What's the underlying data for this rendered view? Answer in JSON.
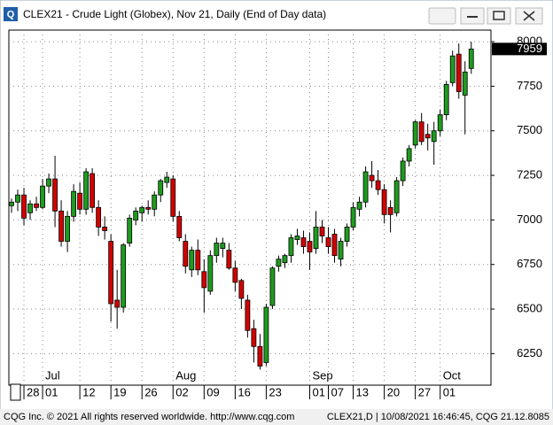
{
  "chart_data": {
    "type": "candlestick",
    "title": "CLEX21 - Crude Light (Globex), Nov 21, Daily (End of Day data)",
    "footer_left": "CQG Inc. © 2021 All rights reserved worldwide. http://www.cqg.com",
    "footer_right": "CLEX21,D | 10/08/2021 16:46:45, CQG 21.12.8085",
    "categories": [
      null,
      null,
      "28",
      null,
      null,
      "01",
      null,
      null,
      null,
      null,
      null,
      "12",
      null,
      null,
      null,
      null,
      "19",
      null,
      null,
      null,
      null,
      "26",
      null,
      null,
      null,
      null,
      "02",
      null,
      null,
      null,
      null,
      "09",
      null,
      null,
      null,
      null,
      "16",
      null,
      null,
      null,
      null,
      "23",
      null,
      null,
      null,
      null,
      null,
      null,
      "01",
      null,
      null,
      "07",
      null,
      null,
      null,
      "13",
      null,
      null,
      null,
      null,
      "20",
      null,
      null,
      null,
      null,
      "27",
      null,
      null,
      null,
      "01",
      null,
      null,
      null,
      null,
      null
    ],
    "months": [
      "Jul",
      "Aug",
      "Sep",
      "Oct"
    ],
    "open": [
      7080,
      7100,
      7140,
      7040,
      7090,
      7070,
      7190,
      7230,
      7050,
      6880,
      7020,
      7150,
      7060,
      7260,
      7070,
      6960,
      6880,
      6550,
      6510,
      6870,
      7000,
      7040,
      7070,
      7060,
      7140,
      7210,
      7230,
      7020,
      6880,
      6720,
      6830,
      6710,
      6600,
      6800,
      6840,
      6830,
      6730,
      6660,
      6550,
      6390,
      6290,
      6200,
      6520,
      6740,
      6760,
      6800,
      6890,
      6900,
      6880,
      6840,
      6960,
      6900,
      6920,
      6780,
      6880,
      6960,
      7060,
      7100,
      7250,
      7220,
      7170,
      7070,
      7040,
      7220,
      7330,
      7420,
      7550,
      7480,
      7440,
      7500,
      7590,
      7770,
      7930,
      7700,
      7850
    ],
    "high": [
      7120,
      7170,
      7180,
      7110,
      7130,
      7230,
      7260,
      7360,
      7110,
      7050,
      7200,
      7210,
      7290,
      7290,
      7110,
      7020,
      6920,
      6720,
      6870,
      7030,
      7070,
      7080,
      7110,
      7160,
      7230,
      7270,
      7250,
      7050,
      6920,
      6850,
      6890,
      6780,
      6830,
      6900,
      6900,
      6870,
      6770,
      6670,
      6580,
      6440,
      6360,
      6530,
      6740,
      6800,
      6810,
      6920,
      6950,
      6940,
      6930,
      7050,
      7000,
      6960,
      6950,
      6900,
      6980,
      7100,
      7130,
      7300,
      7330,
      7280,
      7200,
      7110,
      7240,
      7350,
      7420,
      7560,
      7600,
      7540,
      7550,
      7620,
      7780,
      7950,
      7990,
      7890,
      8000
    ],
    "low": [
      7040,
      7050,
      6970,
      7000,
      7050,
      7060,
      7150,
      6960,
      6850,
      6820,
      6990,
      7030,
      7030,
      7040,
      6910,
      6890,
      6430,
      6390,
      6480,
      6850,
      6970,
      6990,
      7030,
      7020,
      7100,
      7180,
      6990,
      6880,
      6700,
      6680,
      6690,
      6480,
      6580,
      6760,
      6790,
      6720,
      6600,
      6500,
      6340,
      6200,
      6160,
      6180,
      6500,
      6710,
      6730,
      6760,
      6860,
      6810,
      6720,
      6810,
      6870,
      6810,
      6760,
      6740,
      6850,
      6940,
      7020,
      7070,
      7180,
      7140,
      6980,
      6930,
      7020,
      7190,
      7300,
      7400,
      7420,
      7390,
      7310,
      7470,
      7560,
      7750,
      7680,
      7480,
      7820
    ],
    "close": [
      7100,
      7140,
      7010,
      7090,
      7070,
      7190,
      7230,
      7050,
      6880,
      7020,
      7160,
      7060,
      7270,
      7070,
      6960,
      6940,
      6530,
      6510,
      6860,
      7010,
      7050,
      7070,
      7060,
      7140,
      7220,
      7240,
      7020,
      6900,
      6740,
      6830,
      6720,
      6620,
      6800,
      6870,
      6870,
      6730,
      6650,
      6560,
      6380,
      6290,
      6180,
      6510,
      6730,
      6780,
      6800,
      6900,
      6910,
      6850,
      6820,
      6960,
      6910,
      6850,
      6800,
      6880,
      6960,
      7070,
      7100,
      7270,
      7220,
      7170,
      7030,
      7030,
      7220,
      7330,
      7400,
      7550,
      7440,
      7460,
      7500,
      7590,
      7760,
      7920,
      7720,
      7830,
      7959
    ],
    "last_value": 7959,
    "up_color": "#1e9c1e",
    "down_color": "#d40000",
    "ylim": [
      6073,
      8065
    ],
    "yticks": [
      6250,
      6500,
      6750,
      7000,
      7250,
      7500,
      7750,
      8000
    ],
    "grid": true
  }
}
